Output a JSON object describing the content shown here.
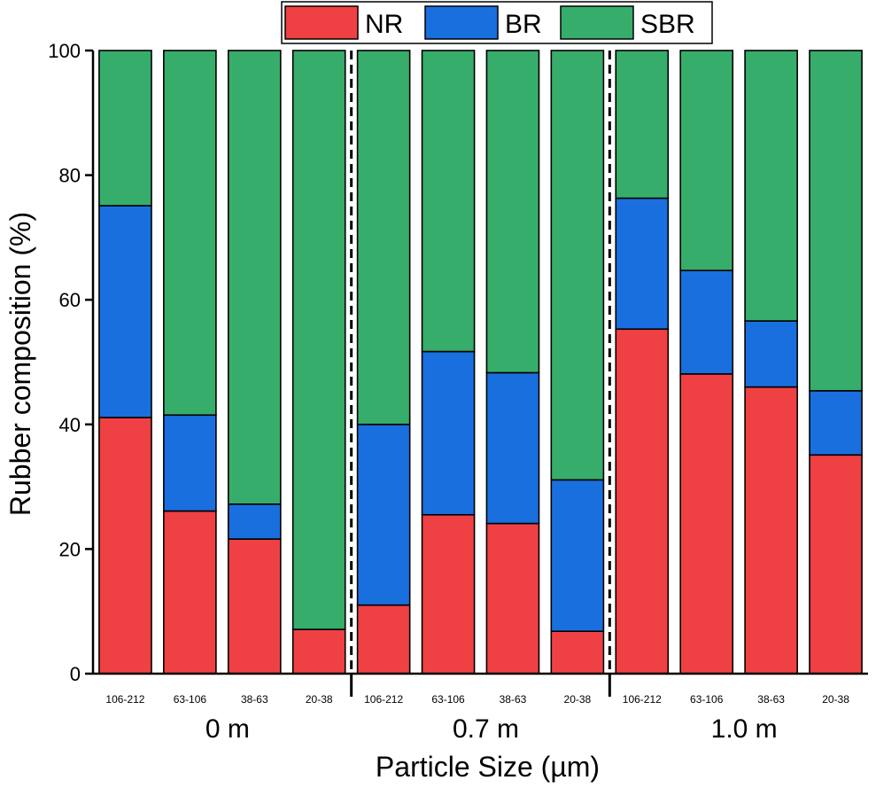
{
  "chart_data": {
    "type": "bar",
    "stacked": true,
    "xlabel": "Particle Size (µm)",
    "ylabel": "Rubber composition (%)",
    "ylim": [
      0,
      100
    ],
    "yticks": [
      "0",
      "20",
      "40",
      "60",
      "80",
      "100"
    ],
    "groups": [
      {
        "label": "0 m",
        "categories": [
          "106-212",
          "63-106",
          "38-63",
          "20-38"
        ]
      },
      {
        "label": "0.7 m",
        "categories": [
          "106-212",
          "63-106",
          "38-63",
          "20-38"
        ]
      },
      {
        "label": "1.0 m",
        "categories": [
          "106-212",
          "63-106",
          "38-63",
          "20-38"
        ]
      }
    ],
    "series": [
      {
        "name": "NR",
        "color": "#EF4143",
        "values": [
          41.1,
          26.1,
          21.6,
          7.1,
          11.0,
          25.5,
          24.1,
          6.8,
          55.3,
          48.1,
          46.0,
          35.1
        ]
      },
      {
        "name": "BR",
        "color": "#1A6FDF",
        "values": [
          34.0,
          15.4,
          5.6,
          0.0,
          29.0,
          26.2,
          24.2,
          24.3,
          21.0,
          16.6,
          10.6,
          10.3
        ]
      },
      {
        "name": "SBR",
        "color": "#37AD6B",
        "values": [
          24.9,
          58.5,
          72.8,
          92.9,
          60.0,
          48.3,
          51.7,
          68.9,
          23.7,
          35.3,
          43.4,
          54.6
        ]
      }
    ],
    "legend_position": "top-right",
    "group_separators": "dashed",
    "grid": false
  }
}
